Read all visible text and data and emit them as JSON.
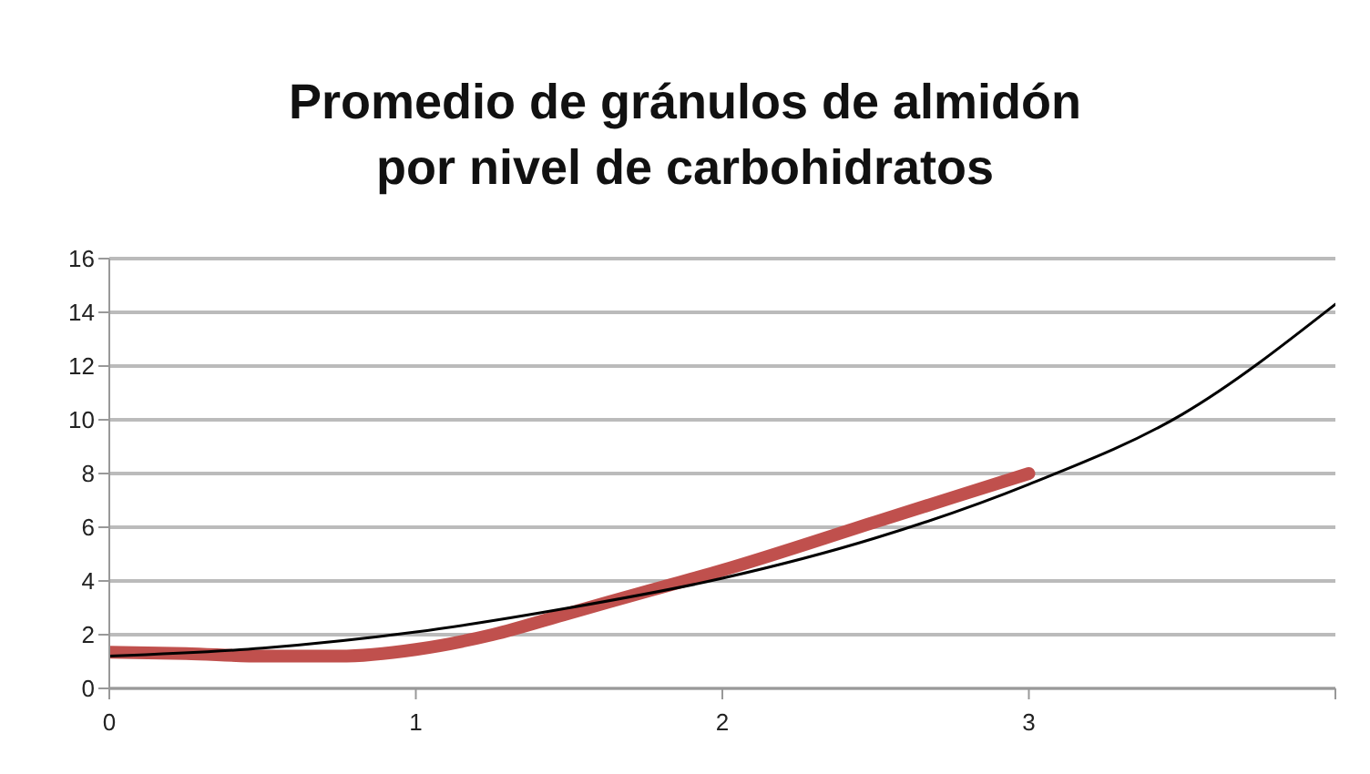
{
  "chart_data": {
    "type": "line",
    "title": "Promedio de gránulos de almidón\npor nivel de carbohidratos",
    "series": [
      {
        "color": "#c0504d",
        "x": [
          0,
          0.25,
          0.5,
          0.75,
          1,
          1.25,
          1.5,
          1.75,
          2,
          2.5,
          3
        ],
        "values": [
          1.35,
          1.3,
          1.2,
          1.2,
          1.45,
          2.0,
          2.8,
          3.6,
          4.4,
          6.2,
          8.0
        ]
      },
      {
        "color": "#000000",
        "x": [
          0,
          0.5,
          1,
          1.5,
          2,
          2.5,
          3,
          3.5,
          4
        ],
        "values": [
          1.2,
          1.5,
          2.1,
          3.0,
          4.1,
          5.6,
          7.6,
          10.2,
          14.3
        ]
      }
    ],
    "xlim": [
      0,
      4
    ],
    "xticks": [
      0,
      1,
      2,
      3,
      {
        "value": 4,
        "label": null
      }
    ],
    "ylim": [
      0,
      16
    ],
    "yticks": [
      0,
      2,
      4,
      6,
      8,
      10,
      12,
      14,
      16
    ],
    "grid": "y"
  }
}
